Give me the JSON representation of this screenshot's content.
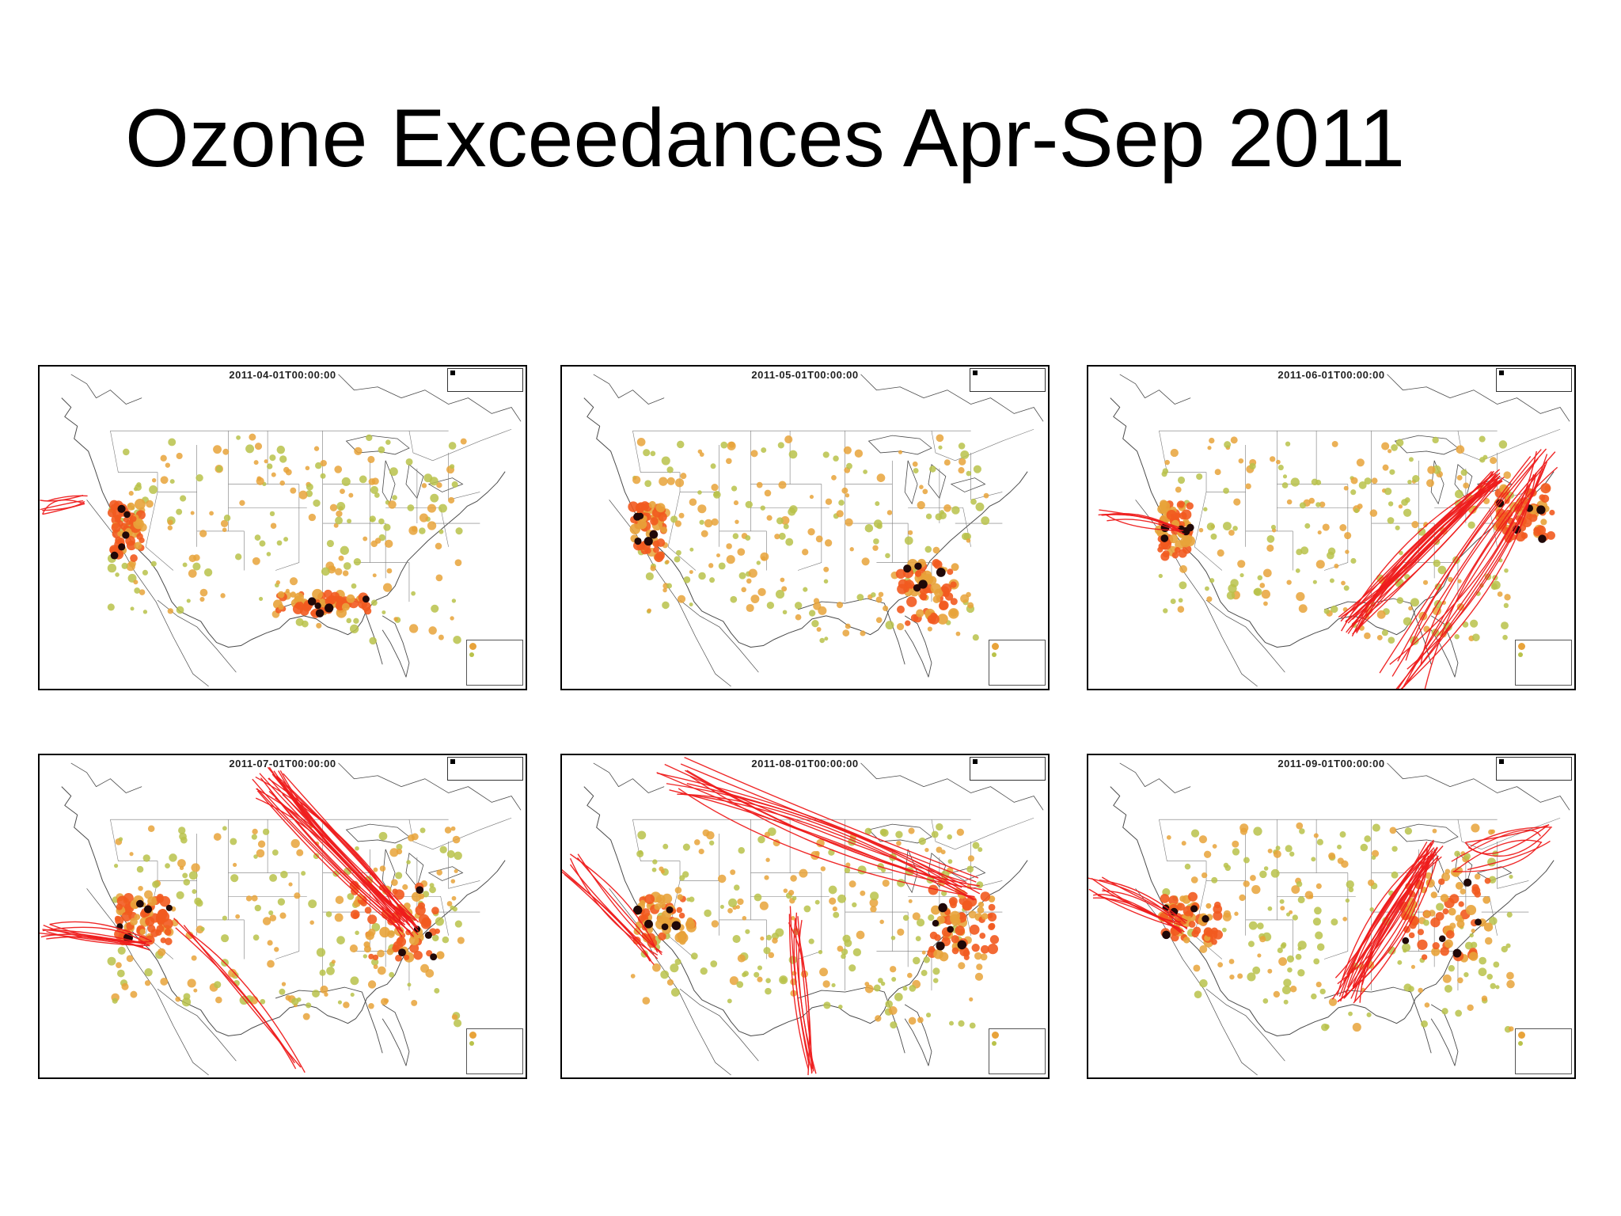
{
  "title": "Ozone Exceedances Apr-Sep 2011",
  "colors": {
    "trajectory": "#ee1c1c",
    "site_low": "#b9c24a",
    "site_mid": "#e8a33a",
    "site_high": "#f25a1f",
    "site_peak": "#200808",
    "boundary": "#4a4a4a"
  },
  "panels": [
    {
      "timestamp": "2011-04-01T00:00:00",
      "trajectories": "light",
      "hotspots": [
        "west-coast",
        "gulf"
      ]
    },
    {
      "timestamp": "2011-05-01T00:00:00",
      "trajectories": "none",
      "hotspots": [
        "west-coast",
        "southeast"
      ]
    },
    {
      "timestamp": "2011-06-01T00:00:00",
      "trajectories": "heavy-east",
      "hotspots": [
        "west-coast",
        "northeast"
      ]
    },
    {
      "timestamp": "2011-07-01T00:00:00",
      "trajectories": "heavy-north",
      "hotspots": [
        "southwest",
        "midwest"
      ]
    },
    {
      "timestamp": "2011-08-01T00:00:00",
      "trajectories": "moderate",
      "hotspots": [
        "southwest",
        "east"
      ]
    },
    {
      "timestamp": "2011-09-01T00:00:00",
      "trajectories": "heavy-central",
      "hotspots": [
        "southwest",
        "midwest"
      ]
    }
  ]
}
